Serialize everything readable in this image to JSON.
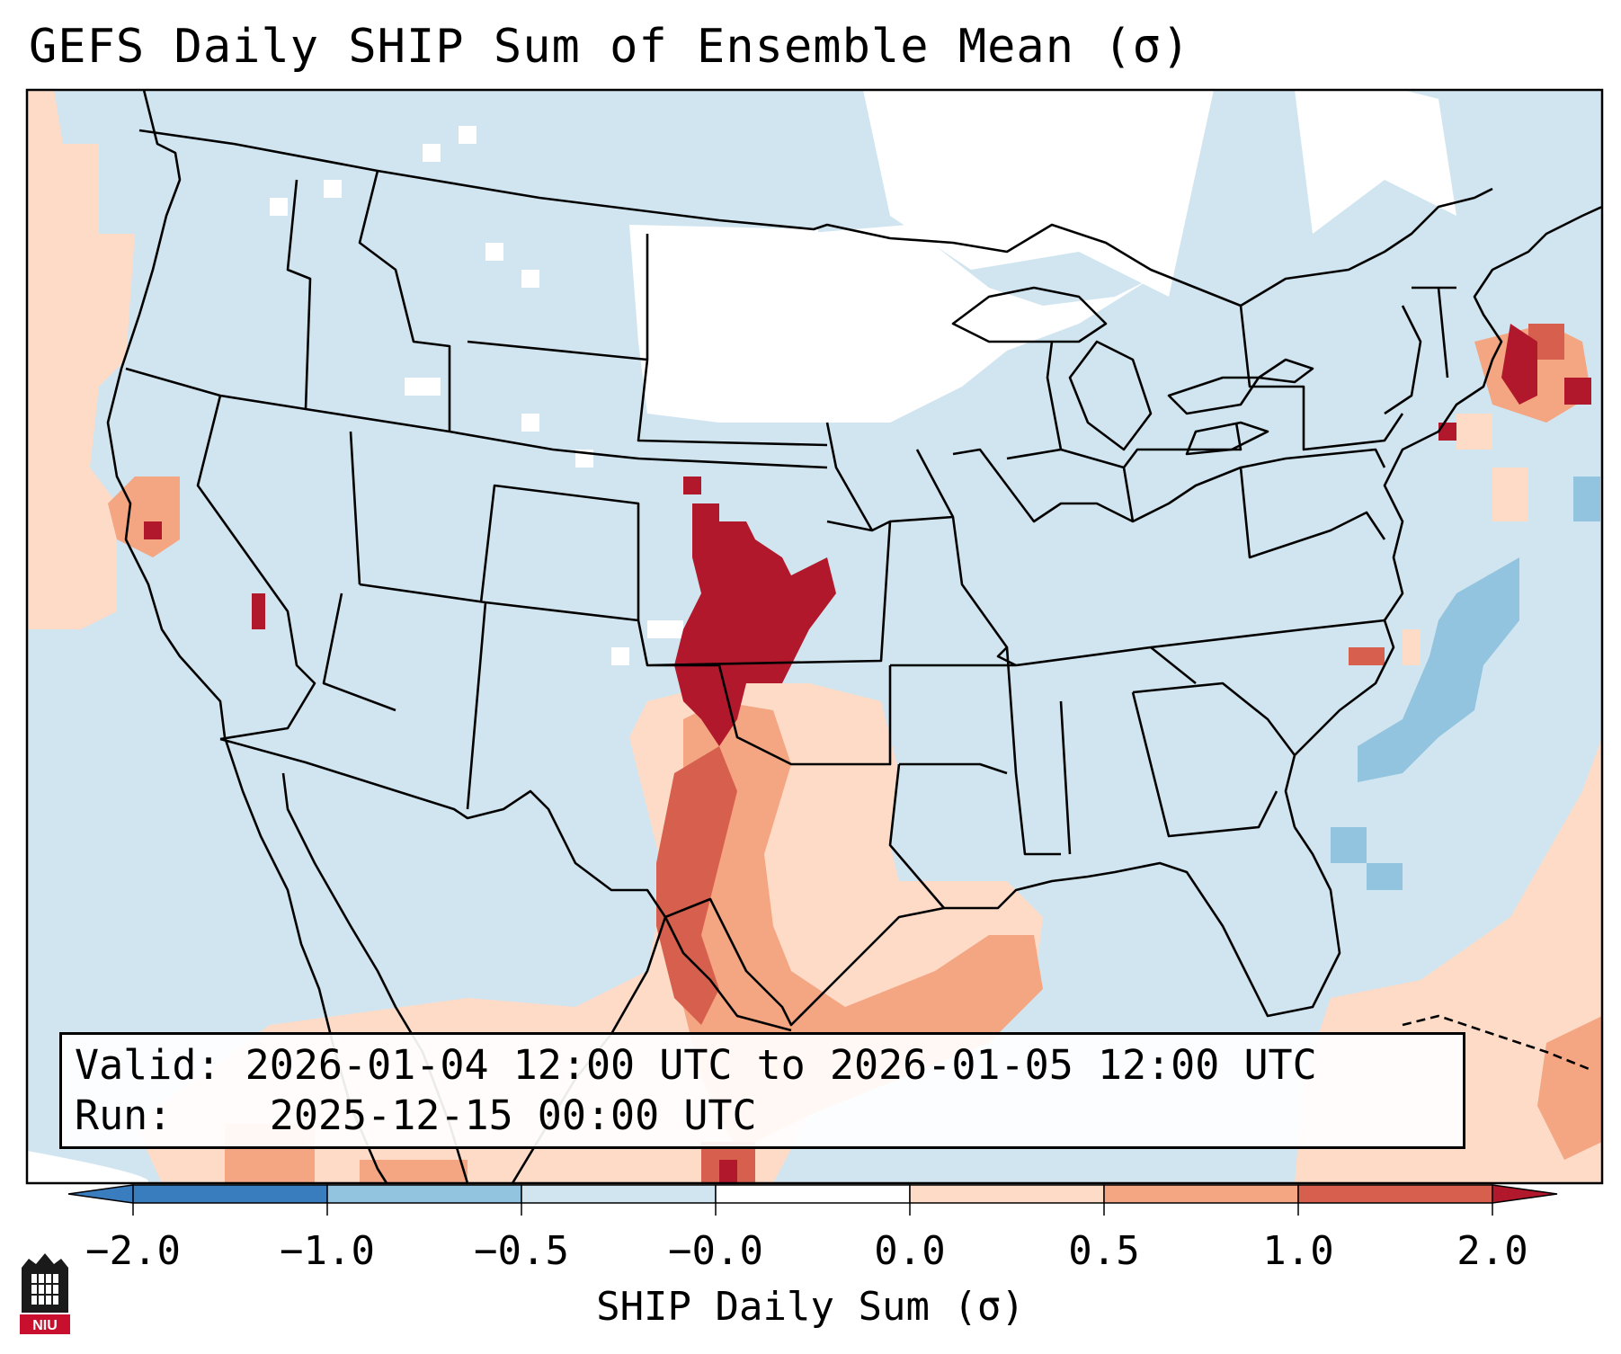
{
  "title": "GEFS Daily SHIP Sum of Ensemble Mean (σ)",
  "info": {
    "valid_label": "Valid:",
    "valid_value": "2026-01-04 12:00 UTC to 2026-01-05 12:00 UTC",
    "run_label": "Run:",
    "run_value": "2025-12-15 00:00 UTC"
  },
  "colorbar": {
    "label": "SHIP Daily Sum (σ)",
    "tick_labels": [
      "−2.0",
      "−1.0",
      "−0.5",
      "−0.0",
      "0.0",
      "0.5",
      "1.0",
      "2.0"
    ],
    "bin_colors": [
      "#3a7dbf",
      "#92c4df",
      "#d1e5f0",
      "#ffffff",
      "#fddbc7",
      "#f4a582",
      "#d6604d",
      "#b2182b"
    ],
    "extend": "both"
  },
  "map": {
    "projection": "Lambert Conformal",
    "region": "Contiguous United States",
    "background_color": "#d1e5f0",
    "boundaries": [
      "coastlines",
      "country borders",
      "state borders"
    ]
  },
  "logo": {
    "text": "NIU"
  }
}
